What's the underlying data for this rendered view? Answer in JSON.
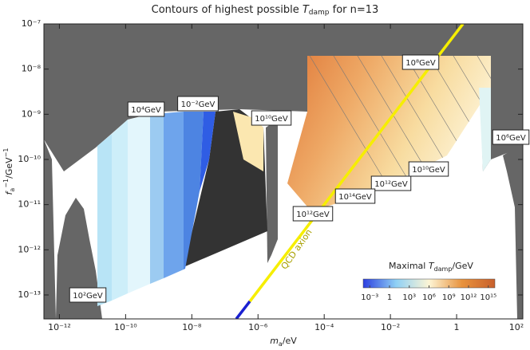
{
  "chart_data": {
    "type": "region",
    "title": [
      "Contours of highest possible ",
      "T",
      "damp",
      " for n=13"
    ],
    "x_label": [
      "m",
      "a",
      "/eV"
    ],
    "y_label": [
      "f",
      "a",
      "−1",
      "/GeV",
      "−1"
    ],
    "log_x": true,
    "log_y": true,
    "xlim": [
      3.4e-13,
      100
    ],
    "ylim": [
      2.95e-14,
      1e-07
    ],
    "xticks": [
      {
        "value": 1e-12,
        "label": "10⁻¹²"
      },
      {
        "value": 1e-10,
        "label": "10⁻¹⁰"
      },
      {
        "value": 1e-08,
        "label": "10⁻⁸"
      },
      {
        "value": 1e-06,
        "label": "10⁻⁶"
      },
      {
        "value": 0.0001,
        "label": "10⁻⁴"
      },
      {
        "value": 0.01,
        "label": "10⁻²"
      },
      1,
      {
        "value": 100,
        "label": "10²"
      }
    ],
    "yticks": [
      {
        "value": 1e-13,
        "label": "10⁻¹³"
      },
      {
        "value": 1e-12,
        "label": "10⁻¹²"
      },
      {
        "value": 1e-11,
        "label": "10⁻¹¹"
      },
      {
        "value": 1e-10,
        "label": "10⁻¹⁰"
      },
      {
        "value": 1e-09,
        "label": "10⁻⁹"
      },
      {
        "value": 1e-08,
        "label": "10⁻⁸"
      },
      {
        "value": 1e-07,
        "label": "10⁻⁷"
      }
    ],
    "annotations": [
      "10²GeV",
      "10⁴GeV",
      "10⁻²GeV",
      "10¹⁰GeV",
      "10⁸GeV",
      "10⁶GeV",
      "10¹⁰GeV",
      "10¹²GeV",
      "10¹⁴GeV",
      "10¹²GeV"
    ],
    "line_label": "QCD axion",
    "colorbar": {
      "title": [
        "Maximal ",
        "T",
        "damp",
        "/GeV"
      ],
      "lim": [
        0.0001,
        1e+16
      ],
      "colors": [
        "#2c3fe0",
        "#8fd0f5",
        "#fdf5d5",
        "#e8923d",
        "#c8602c"
      ],
      "ticks": [
        {
          "value": 0.001,
          "label": "10⁻³"
        },
        1,
        {
          "value": 1000,
          "label": "10³"
        },
        {
          "value": 1000000,
          "label": "10⁶"
        },
        {
          "value": 1000000000,
          "label": "10⁹"
        },
        {
          "value": 1000000000000,
          "label": "10¹²"
        },
        {
          "value": 1000000000000000,
          "label": "10¹⁵"
        }
      ]
    }
  }
}
